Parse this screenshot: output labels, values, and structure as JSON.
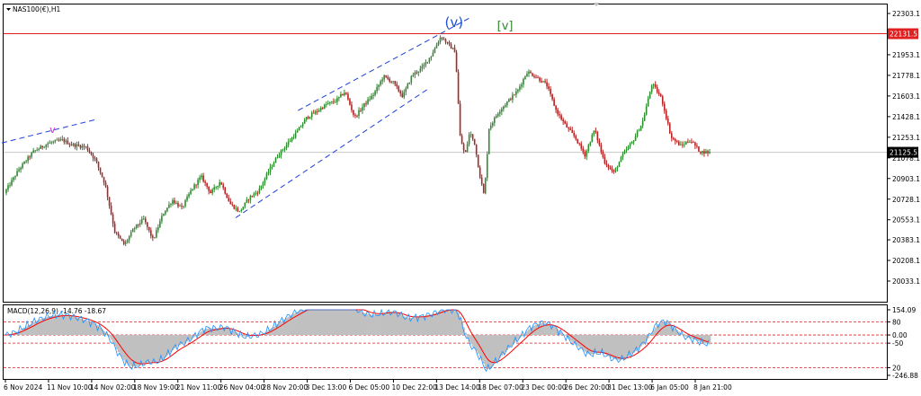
{
  "window": {
    "symbol_label": "NAS100(€),H1",
    "menu_icon": "triangle-down-icon"
  },
  "chart_data": {
    "type": "candlestick",
    "title": "NAS100(€),H1",
    "grid": false,
    "legend": "none",
    "price_axis": {
      "ticks": [
        "22303.1",
        "22131.5",
        "21953.1",
        "21778.1",
        "21603.1",
        "21428.1",
        "21253.1",
        "21078.1",
        "20903.1",
        "20728.1",
        "20553.1",
        "20383.1",
        "20208.1",
        "20033.1"
      ],
      "range": [
        20033.1,
        22303.1
      ]
    },
    "time_axis": {
      "ticks": [
        "6 Nov 2024",
        "11 Nov 10:00",
        "14 Nov 02:00",
        "18 Nov 19:00",
        "21 Nov 11:00",
        "26 Nov 04:00",
        "28 Nov 20:00",
        "3 Dec 13:00",
        "6 Dec 05:00",
        "10 Dec 22:00",
        "13 Dec 14:00",
        "18 Dec 07:00",
        "23 Dec 00:00",
        "26 Dec 20:00",
        "31 Dec 13:00",
        "6 Jan 05:00",
        "8 Jan 21:00"
      ]
    },
    "price_path": [
      [
        0,
        20780
      ],
      [
        3,
        20980
      ],
      [
        6,
        21130
      ],
      [
        9,
        21200
      ],
      [
        12,
        21230
      ],
      [
        14,
        21190
      ],
      [
        17,
        21170
      ],
      [
        19,
        21060
      ],
      [
        21,
        20850
      ],
      [
        23,
        20450
      ],
      [
        25,
        20340
      ],
      [
        27,
        20480
      ],
      [
        29,
        20560
      ],
      [
        31,
        20380
      ],
      [
        33,
        20600
      ],
      [
        35,
        20720
      ],
      [
        37,
        20650
      ],
      [
        39,
        20810
      ],
      [
        41,
        20920
      ],
      [
        43,
        20780
      ],
      [
        45,
        20880
      ],
      [
        47,
        20690
      ],
      [
        49,
        20620
      ],
      [
        51,
        20740
      ],
      [
        53,
        20800
      ],
      [
        55,
        20960
      ],
      [
        57,
        21100
      ],
      [
        59,
        21200
      ],
      [
        61,
        21300
      ],
      [
        63,
        21420
      ],
      [
        65,
        21470
      ],
      [
        67,
        21530
      ],
      [
        69,
        21560
      ],
      [
        71,
        21640
      ],
      [
        73,
        21420
      ],
      [
        75,
        21530
      ],
      [
        77,
        21620
      ],
      [
        79,
        21770
      ],
      [
        81,
        21720
      ],
      [
        83,
        21600
      ],
      [
        85,
        21780
      ],
      [
        87,
        21840
      ],
      [
        89,
        21950
      ],
      [
        91,
        22110
      ],
      [
        92.5,
        22040
      ],
      [
        94,
        21980
      ],
      [
        95,
        21250
      ],
      [
        96,
        21100
      ],
      [
        97,
        21300
      ],
      [
        98,
        21200
      ],
      [
        99,
        20950
      ],
      [
        100,
        20750
      ],
      [
        101,
        21330
      ],
      [
        103,
        21470
      ],
      [
        105,
        21560
      ],
      [
        107,
        21650
      ],
      [
        109,
        21810
      ],
      [
        111,
        21760
      ],
      [
        113,
        21700
      ],
      [
        115,
        21480
      ],
      [
        117,
        21350
      ],
      [
        119,
        21250
      ],
      [
        121,
        21100
      ],
      [
        123,
        21320
      ],
      [
        125,
        21050
      ],
      [
        127,
        20950
      ],
      [
        129,
        21110
      ],
      [
        131,
        21220
      ],
      [
        133,
        21380
      ],
      [
        135,
        21710
      ],
      [
        137,
        21580
      ],
      [
        139,
        21250
      ],
      [
        141,
        21180
      ],
      [
        143,
        21230
      ],
      [
        145,
        21130
      ],
      [
        147,
        21125
      ]
    ],
    "macd": {
      "label": "MACD(12,26,9) -14.76 -18.67",
      "params": [
        12,
        26,
        9
      ],
      "main_value": -14.76,
      "signal_value": -18.67,
      "ticks": [
        "154.09",
        "80",
        "0.00",
        "-50",
        "20",
        "-246.88"
      ],
      "histogram_color": "#c0c0c0",
      "signal_color": "#ff0000",
      "main_line_color": "#1e90ff",
      "levels": [
        80,
        0,
        -50,
        -200
      ]
    },
    "annotations": [
      {
        "text": "v",
        "color": "#cc33cc"
      },
      {
        "text": "(v)",
        "color": "#1a4fd6"
      },
      {
        "text": "[v]",
        "color": "#2e8b2e"
      }
    ],
    "resistance_line": {
      "price": 22131.5,
      "label": "22131.5",
      "color": "#e02020"
    },
    "current_price": {
      "price": 21125.5,
      "label": "21125.5"
    },
    "channel_color": "#1a3fd8",
    "colors": {
      "up_candle": "#2e8b2e",
      "down_candle": "#b22222"
    }
  }
}
